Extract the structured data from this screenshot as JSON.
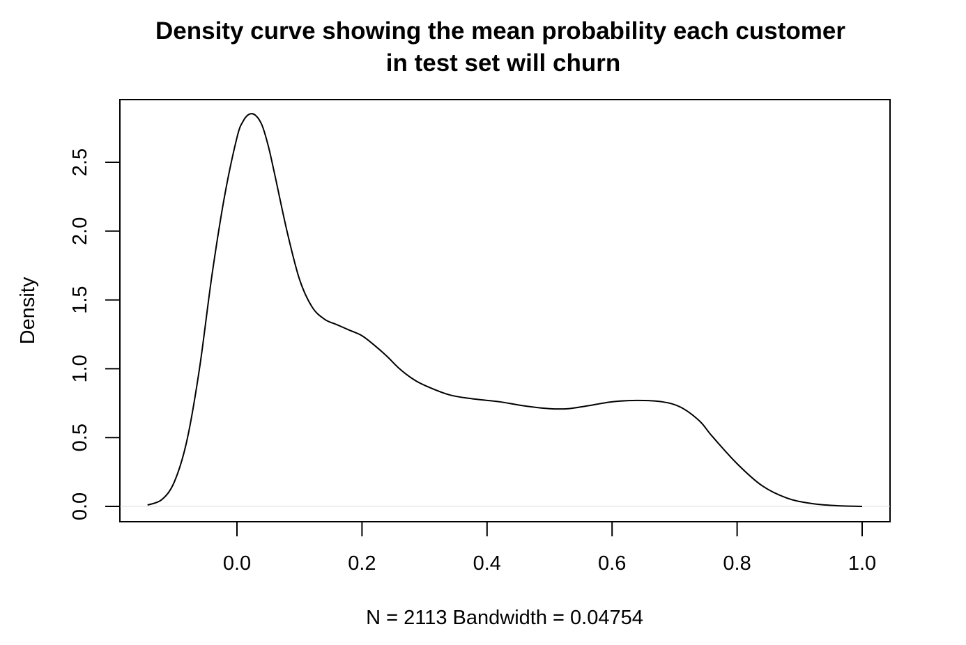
{
  "chart_data": {
    "type": "line",
    "title_line1": "Density curve showing the mean probability each customer",
    "title_line2": "in test set will churn",
    "xlabel": "N = 2113   Bandwidth = 0.04754",
    "ylabel": "Density",
    "xlim": [
      -0.18,
      1.05
    ],
    "ylim": [
      -0.1,
      2.95
    ],
    "x_ticks": [
      0.0,
      0.2,
      0.4,
      0.6,
      0.8,
      1.0
    ],
    "x_tick_labels": [
      "0.0",
      "0.2",
      "0.4",
      "0.6",
      "0.8",
      "1.0"
    ],
    "y_ticks": [
      0.0,
      0.5,
      1.0,
      1.5,
      2.0,
      2.5
    ],
    "y_tick_labels": [
      "0.0",
      "0.5",
      "1.0",
      "1.5",
      "2.0",
      "2.5"
    ],
    "grid": false,
    "legend": "none",
    "line_color": "#000000",
    "series": [
      {
        "x": [
          -0.143,
          -0.12,
          -0.1,
          -0.08,
          -0.06,
          -0.04,
          -0.02,
          0.0,
          0.01,
          0.02,
          0.03,
          0.04,
          0.05,
          0.06,
          0.08,
          0.1,
          0.12,
          0.14,
          0.16,
          0.18,
          0.2,
          0.22,
          0.24,
          0.26,
          0.28,
          0.3,
          0.34,
          0.38,
          0.42,
          0.46,
          0.5,
          0.53,
          0.56,
          0.6,
          0.64,
          0.68,
          0.71,
          0.74,
          0.76,
          0.8,
          0.84,
          0.88,
          0.92,
          0.96,
          1.0
        ],
        "y": [
          0.01,
          0.05,
          0.18,
          0.48,
          1.0,
          1.68,
          2.25,
          2.68,
          2.8,
          2.85,
          2.84,
          2.77,
          2.62,
          2.42,
          2.0,
          1.65,
          1.45,
          1.36,
          1.32,
          1.28,
          1.24,
          1.17,
          1.09,
          1.0,
          0.93,
          0.88,
          0.81,
          0.78,
          0.76,
          0.73,
          0.71,
          0.71,
          0.73,
          0.76,
          0.77,
          0.76,
          0.72,
          0.62,
          0.51,
          0.31,
          0.15,
          0.06,
          0.02,
          0.005,
          0.0
        ]
      }
    ]
  }
}
